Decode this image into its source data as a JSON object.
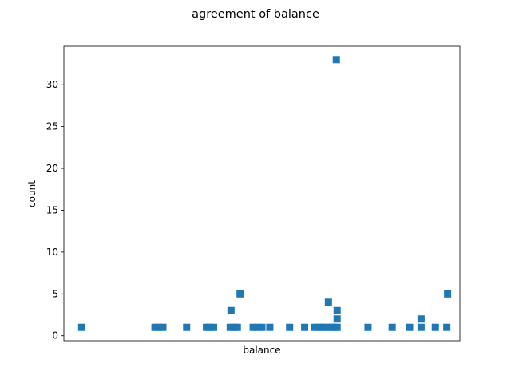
{
  "chart_data": {
    "type": "scatter",
    "title": "agreement of balance",
    "xlabel": "balance",
    "ylabel": "count",
    "ylim": [
      -0.6,
      34.6
    ],
    "xlim": [
      0,
      1
    ],
    "x_ticks_shown": false,
    "yticks": [
      0,
      5,
      10,
      15,
      20,
      25,
      30
    ],
    "marker": "square",
    "color": "#1f77b4",
    "grid": false,
    "points": [
      {
        "x": 0.045,
        "y": 1
      },
      {
        "x": 0.23,
        "y": 1
      },
      {
        "x": 0.24,
        "y": 1
      },
      {
        "x": 0.25,
        "y": 1
      },
      {
        "x": 0.31,
        "y": 1
      },
      {
        "x": 0.36,
        "y": 1
      },
      {
        "x": 0.368,
        "y": 1
      },
      {
        "x": 0.378,
        "y": 1
      },
      {
        "x": 0.42,
        "y": 1
      },
      {
        "x": 0.422,
        "y": 3
      },
      {
        "x": 0.43,
        "y": 1
      },
      {
        "x": 0.438,
        "y": 1
      },
      {
        "x": 0.445,
        "y": 5
      },
      {
        "x": 0.478,
        "y": 1
      },
      {
        "x": 0.488,
        "y": 1
      },
      {
        "x": 0.5,
        "y": 1
      },
      {
        "x": 0.52,
        "y": 1
      },
      {
        "x": 0.57,
        "y": 1
      },
      {
        "x": 0.608,
        "y": 1
      },
      {
        "x": 0.632,
        "y": 1
      },
      {
        "x": 0.643,
        "y": 1
      },
      {
        "x": 0.652,
        "y": 1
      },
      {
        "x": 0.662,
        "y": 1
      },
      {
        "x": 0.668,
        "y": 4
      },
      {
        "x": 0.675,
        "y": 1
      },
      {
        "x": 0.682,
        "y": 1
      },
      {
        "x": 0.688,
        "y": 33
      },
      {
        "x": 0.69,
        "y": 3
      },
      {
        "x": 0.69,
        "y": 2
      },
      {
        "x": 0.69,
        "y": 1
      },
      {
        "x": 0.768,
        "y": 1
      },
      {
        "x": 0.829,
        "y": 1
      },
      {
        "x": 0.873,
        "y": 1
      },
      {
        "x": 0.902,
        "y": 1
      },
      {
        "x": 0.902,
        "y": 2
      },
      {
        "x": 0.938,
        "y": 1
      },
      {
        "x": 0.967,
        "y": 1
      },
      {
        "x": 0.969,
        "y": 5
      }
    ]
  }
}
